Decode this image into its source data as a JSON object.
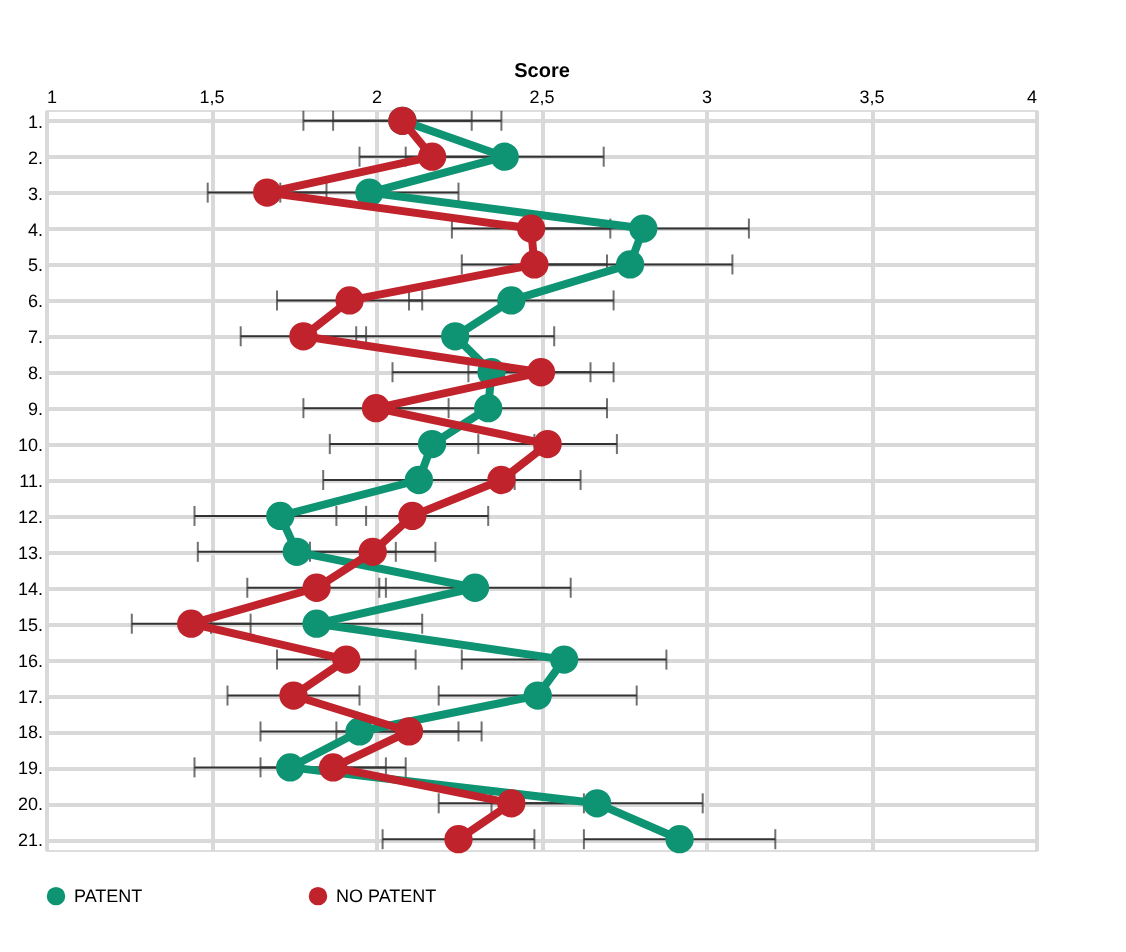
{
  "chart_data": {
    "type": "line",
    "xlabel": "Score",
    "orientation": "horizontal",
    "categories": [
      "1.",
      "2.",
      "3.",
      "4.",
      "5.",
      "6.",
      "7.",
      "8.",
      "9.",
      "10.",
      "11.",
      "12.",
      "13.",
      "14.",
      "15.",
      "16.",
      "17.",
      "18.",
      "19.",
      "20.",
      "21."
    ],
    "xlim": [
      1,
      4
    ],
    "xticks": [
      {
        "value": 1,
        "label": "1"
      },
      {
        "value": 1.5,
        "label": "1,5"
      },
      {
        "value": 2,
        "label": "2"
      },
      {
        "value": 2.5,
        "label": "2,5"
      },
      {
        "value": 3,
        "label": "3"
      },
      {
        "value": 3.5,
        "label": "3,5"
      },
      {
        "value": 4,
        "label": "4"
      }
    ],
    "series": [
      {
        "name": "PATENT",
        "color": "#0e9473",
        "values": [
          2.08,
          2.39,
          1.98,
          2.81,
          2.77,
          2.41,
          2.24,
          2.35,
          2.34,
          2.17,
          2.13,
          1.71,
          1.76,
          2.3,
          1.82,
          2.57,
          2.49,
          1.95,
          1.74,
          2.67,
          2.92
        ],
        "errors": [
          0.3,
          0.3,
          0.27,
          0.32,
          0.31,
          0.31,
          0.3,
          0.3,
          0.36,
          0.31,
          0.29,
          0.26,
          0.3,
          0.29,
          0.32,
          0.31,
          0.3,
          0.3,
          0.29,
          0.32,
          0.29
        ]
      },
      {
        "name": "NO PATENT",
        "color": "#c0232b",
        "values": [
          2.08,
          2.17,
          1.67,
          2.47,
          2.48,
          1.92,
          1.78,
          2.5,
          2.0,
          2.52,
          2.38,
          2.11,
          1.99,
          1.82,
          1.44,
          1.91,
          1.75,
          2.1,
          1.87,
          2.41,
          2.25
        ],
        "errors": [
          0.21,
          0.22,
          0.18,
          0.24,
          0.22,
          0.22,
          0.19,
          0.22,
          0.22,
          0.21,
          0.24,
          0.23,
          0.19,
          0.21,
          0.18,
          0.21,
          0.2,
          0.22,
          0.22,
          0.22,
          0.23
        ]
      }
    ],
    "grid": true,
    "legend": "bottom",
    "marker": "circle",
    "line_style": "solid"
  }
}
